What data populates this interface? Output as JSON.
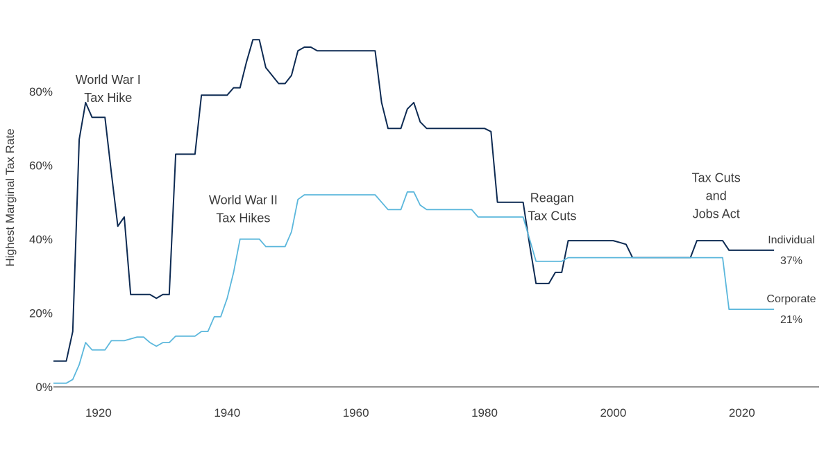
{
  "chart_data": {
    "type": "line",
    "title": "",
    "xlabel": "",
    "ylabel": "Highest Marginal Tax Rate",
    "xlim": [
      1913,
      2032
    ],
    "ylim": [
      0,
      95
    ],
    "x_ticks": [
      1920,
      1940,
      1960,
      1980,
      2000,
      2020
    ],
    "x_tick_labels": [
      "1920",
      "1940",
      "1960",
      "1980",
      "2000",
      "2020"
    ],
    "y_ticks": [
      0,
      20,
      40,
      60,
      80
    ],
    "y_tick_labels": [
      "0%",
      "20%",
      "40%",
      "60%",
      "80%"
    ],
    "grid": false,
    "legend": "none",
    "series": [
      {
        "name": "Individual",
        "end_label": "Individual",
        "end_value_label": "37%",
        "color": "#0d2a52",
        "points": [
          [
            1913,
            7
          ],
          [
            1915,
            7
          ],
          [
            1916,
            15
          ],
          [
            1917,
            67
          ],
          [
            1918,
            77
          ],
          [
            1919,
            73
          ],
          [
            1921,
            73
          ],
          [
            1922,
            58
          ],
          [
            1923,
            43.5
          ],
          [
            1924,
            46
          ],
          [
            1925,
            25
          ],
          [
            1928,
            25
          ],
          [
            1929,
            24
          ],
          [
            1930,
            25
          ],
          [
            1931,
            25
          ],
          [
            1932,
            63
          ],
          [
            1935,
            63
          ],
          [
            1936,
            79
          ],
          [
            1940,
            79
          ],
          [
            1941,
            81
          ],
          [
            1942,
            81
          ],
          [
            1943,
            88
          ],
          [
            1944,
            94
          ],
          [
            1945,
            94
          ],
          [
            1946,
            86.45
          ],
          [
            1948,
            82.13
          ],
          [
            1949,
            82.13
          ],
          [
            1950,
            84.36
          ],
          [
            1951,
            91
          ],
          [
            1952,
            92
          ],
          [
            1953,
            92
          ],
          [
            1954,
            91
          ],
          [
            1963,
            91
          ],
          [
            1964,
            77
          ],
          [
            1965,
            70
          ],
          [
            1967,
            70
          ],
          [
            1968,
            75.25
          ],
          [
            1969,
            77
          ],
          [
            1970,
            71.75
          ],
          [
            1971,
            70
          ],
          [
            1980,
            70
          ],
          [
            1981,
            69.13
          ],
          [
            1982,
            50
          ],
          [
            1986,
            50
          ],
          [
            1987,
            38.5
          ],
          [
            1988,
            28
          ],
          [
            1990,
            28
          ],
          [
            1991,
            31
          ],
          [
            1992,
            31
          ],
          [
            1993,
            39.6
          ],
          [
            2000,
            39.6
          ],
          [
            2001,
            39.1
          ],
          [
            2002,
            38.6
          ],
          [
            2003,
            35
          ],
          [
            2012,
            35
          ],
          [
            2013,
            39.6
          ],
          [
            2017,
            39.6
          ],
          [
            2018,
            37
          ],
          [
            2025,
            37
          ]
        ]
      },
      {
        "name": "Corporate",
        "end_label": "Corporate",
        "end_value_label": "21%",
        "color": "#5bb7dc",
        "points": [
          [
            1913,
            1
          ],
          [
            1915,
            1
          ],
          [
            1916,
            2
          ],
          [
            1917,
            6
          ],
          [
            1918,
            12
          ],
          [
            1919,
            10
          ],
          [
            1921,
            10
          ],
          [
            1922,
            12.5
          ],
          [
            1924,
            12.5
          ],
          [
            1925,
            13
          ],
          [
            1926,
            13.5
          ],
          [
            1927,
            13.5
          ],
          [
            1928,
            12
          ],
          [
            1929,
            11
          ],
          [
            1930,
            12
          ],
          [
            1931,
            12
          ],
          [
            1932,
            13.75
          ],
          [
            1935,
            13.75
          ],
          [
            1936,
            15
          ],
          [
            1937,
            15
          ],
          [
            1938,
            19
          ],
          [
            1939,
            19
          ],
          [
            1940,
            24
          ],
          [
            1941,
            31
          ],
          [
            1942,
            40
          ],
          [
            1945,
            40
          ],
          [
            1946,
            38
          ],
          [
            1949,
            38
          ],
          [
            1950,
            42
          ],
          [
            1951,
            50.75
          ],
          [
            1952,
            52
          ],
          [
            1963,
            52
          ],
          [
            1964,
            50
          ],
          [
            1965,
            48
          ],
          [
            1967,
            48
          ],
          [
            1968,
            52.8
          ],
          [
            1969,
            52.8
          ],
          [
            1970,
            49.2
          ],
          [
            1971,
            48
          ],
          [
            1978,
            48
          ],
          [
            1979,
            46
          ],
          [
            1986,
            46
          ],
          [
            1987,
            40
          ],
          [
            1988,
            34
          ],
          [
            1992,
            34
          ],
          [
            1993,
            35
          ],
          [
            2017,
            35
          ],
          [
            2018,
            21
          ],
          [
            2025,
            21
          ]
        ]
      }
    ],
    "annotations": [
      {
        "lines": [
          "World War I",
          "Tax Hike"
        ],
        "x": 1921.5,
        "y": 82
      },
      {
        "lines": [
          "World War II",
          "Tax Hikes"
        ],
        "x": 1942.5,
        "y": 49.5
      },
      {
        "lines": [
          "Reagan",
          "Tax Cuts"
        ],
        "x": 1990.5,
        "y": 50
      },
      {
        "lines": [
          "Tax Cuts",
          "and",
          "Jobs Act"
        ],
        "x": 2016,
        "y": 55.5
      }
    ]
  }
}
